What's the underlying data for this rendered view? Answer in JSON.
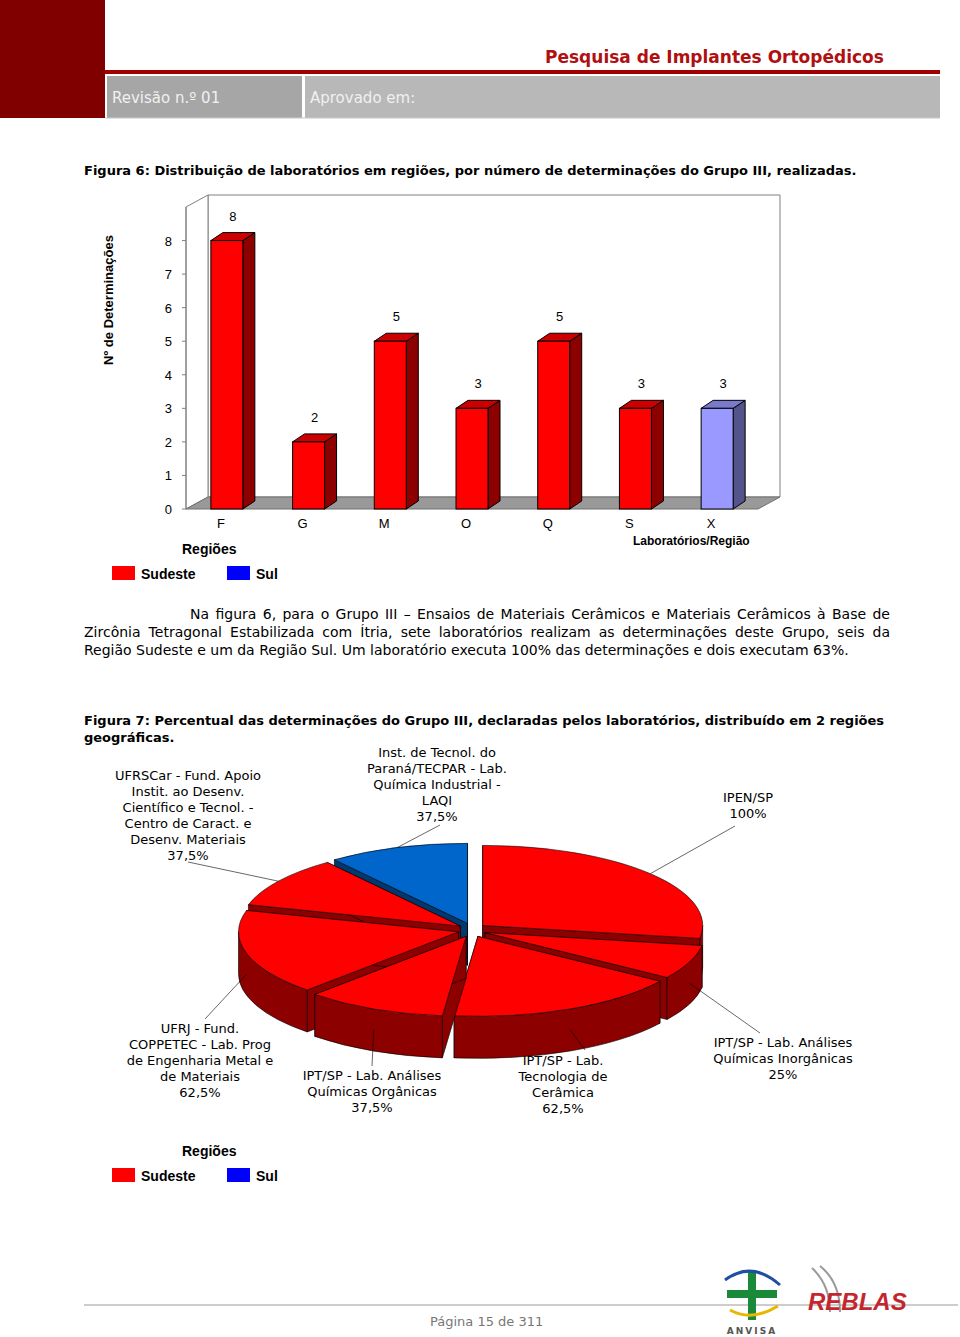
{
  "header": {
    "title": "Pesquisa de Implantes Ortopédicos",
    "revision": "Revisão n.º 01",
    "approved": "Aprovado em:"
  },
  "figure6_caption": "Figura 6: Distribuição de laboratórios em regiões, por número de determinações do Grupo III, realizadas.",
  "paragraph": "Na figura 6, para o Grupo III – Ensaios de Materiais Cerâmicos e Materiais Cerâmicos à Base de Zircônia Tetragonal Estabilizada com Ítria, sete laboratórios realizam as determinações deste Grupo, seis da Região Sudeste e um da Região Sul. Um laboratório executa 100% das determinações e dois executam 63%.",
  "figure7_caption": "Figura 7: Percentual das determinações do Grupo III, declaradas pelos laboratórios, distribuído em 2 regiões geográficas.",
  "footer": {
    "page": "Página 15 de 311",
    "logos": [
      "ANVISA",
      "REBLAS"
    ]
  },
  "chart_data": [
    {
      "type": "bar",
      "x_label": "Laboratórios/Região",
      "y_label": "Nº de Determinações",
      "categories": [
        "F",
        "G",
        "M",
        "O",
        "Q",
        "S",
        "X"
      ],
      "values": [
        8,
        2,
        5,
        3,
        5,
        3,
        3
      ],
      "colors": [
        "#ff0000",
        "#ff0000",
        "#ff0000",
        "#ff0000",
        "#ff0000",
        "#ff0000",
        "#9999ff"
      ],
      "ylim": [
        0,
        9
      ],
      "yticks": [
        0,
        1,
        2,
        3,
        4,
        5,
        6,
        7,
        8
      ],
      "grid": false,
      "data_labels": true,
      "legend_title": "Regiões",
      "legend_entries": [
        {
          "name": "Sudeste",
          "color": "#ff0000"
        },
        {
          "name": "Sul",
          "color": "#0000ff"
        }
      ]
    },
    {
      "type": "pie",
      "categories": [
        "IPEN/SP",
        "IPT/SP - Lab. Análises Químicas Inorgânicas",
        "IPT/SP - Lab. Tecnologia de Cerâmica",
        "IPT/SP - Lab. Análises Químicas Orgânicas",
        "UFRJ - Fund. COPPETEC - Lab. Prog de Engenharia Metal e de Materiais",
        "UFRSCar - Fund. Apoio Instit. ao Desenv. Científico e Tecnol. - Centro de Caract. e Desenv. Materiais",
        "Inst. de Tecnol. do Paraná/TECPAR - Lab. Química Industrial - LAQI"
      ],
      "values": [
        100,
        25,
        62.5,
        37.5,
        62.5,
        37.5,
        37.5
      ],
      "value_labels": [
        "100%",
        "25%",
        "62,5%",
        "37,5%",
        "62,5%",
        "37,5%",
        "37,5%"
      ],
      "colors": [
        "#ff0000",
        "#ff0000",
        "#ff0000",
        "#ff0000",
        "#ff0000",
        "#ff0000",
        "#0066cc"
      ],
      "data_labels": true,
      "legend_title": "Regiões",
      "legend_entries": [
        {
          "name": "Sudeste",
          "color": "#ff0000"
        },
        {
          "name": "Sul",
          "color": "#0000ff"
        }
      ]
    }
  ]
}
